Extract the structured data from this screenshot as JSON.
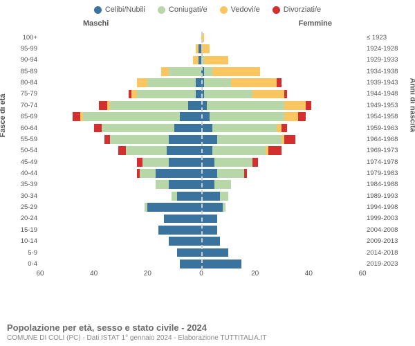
{
  "type": "population-pyramid",
  "legend": [
    {
      "label": "Celibi/Nubili",
      "color": "#3b739f"
    },
    {
      "label": "Coniugati/e",
      "color": "#b7d7a8"
    },
    {
      "label": "Vedovi/e",
      "color": "#f9c662"
    },
    {
      "label": "Divorziati/e",
      "color": "#d32f2f"
    }
  ],
  "gender_labels": {
    "m": "Maschi",
    "f": "Femmine"
  },
  "y_left_title": "Fasce di età",
  "y_right_title": "Anni di nascita",
  "x_axis": {
    "min": -60,
    "max": 60,
    "ticks": [
      60,
      40,
      20,
      0,
      20,
      40,
      60
    ]
  },
  "title": "Popolazione per età, sesso e stato civile - 2024",
  "subtitle": "COMUNE DI COLI (PC) - Dati ISTAT 1° gennaio 2024 - Elaborazione TUTTITALIA.IT",
  "colors": {
    "bg": "#ffffff",
    "grid": "#f0f0f0",
    "center": "#d0d0d0",
    "text": "#555555"
  },
  "scale_max": 60,
  "rows": [
    {
      "age": "100+",
      "birth": "≤ 1923",
      "m": [
        0,
        0,
        0,
        0
      ],
      "f": [
        0,
        0,
        1,
        0
      ]
    },
    {
      "age": "95-99",
      "birth": "1924-1928",
      "m": [
        1,
        0,
        1,
        0
      ],
      "f": [
        0,
        0,
        3,
        0
      ]
    },
    {
      "age": "90-94",
      "birth": "1929-1933",
      "m": [
        1,
        0,
        2,
        0
      ],
      "f": [
        0,
        1,
        9,
        0
      ]
    },
    {
      "age": "85-89",
      "birth": "1934-1938",
      "m": [
        0,
        12,
        3,
        0
      ],
      "f": [
        1,
        3,
        18,
        0
      ]
    },
    {
      "age": "80-84",
      "birth": "1939-1943",
      "m": [
        2,
        18,
        4,
        0
      ],
      "f": [
        1,
        10,
        17,
        2
      ]
    },
    {
      "age": "75-79",
      "birth": "1944-1948",
      "m": [
        2,
        22,
        2,
        1
      ],
      "f": [
        1,
        18,
        12,
        1
      ]
    },
    {
      "age": "70-74",
      "birth": "1949-1953",
      "m": [
        5,
        29,
        1,
        3
      ],
      "f": [
        2,
        29,
        8,
        2
      ]
    },
    {
      "age": "65-69",
      "birth": "1954-1958",
      "m": [
        8,
        36,
        1,
        3
      ],
      "f": [
        3,
        28,
        5,
        3
      ]
    },
    {
      "age": "60-64",
      "birth": "1959-1963",
      "m": [
        10,
        27,
        0,
        3
      ],
      "f": [
        4,
        24,
        2,
        2
      ]
    },
    {
      "age": "55-59",
      "birth": "1964-1968",
      "m": [
        12,
        22,
        0,
        2
      ],
      "f": [
        6,
        24,
        1,
        4
      ]
    },
    {
      "age": "50-54",
      "birth": "1969-1973",
      "m": [
        13,
        15,
        0,
        3
      ],
      "f": [
        4,
        20,
        1,
        5
      ]
    },
    {
      "age": "45-49",
      "birth": "1974-1978",
      "m": [
        12,
        10,
        0,
        2
      ],
      "f": [
        5,
        14,
        0,
        2
      ]
    },
    {
      "age": "40-44",
      "birth": "1979-1983",
      "m": [
        17,
        6,
        0,
        1
      ],
      "f": [
        6,
        10,
        0,
        1
      ]
    },
    {
      "age": "35-39",
      "birth": "1984-1988",
      "m": [
        12,
        5,
        0,
        0
      ],
      "f": [
        5,
        6,
        0,
        0
      ]
    },
    {
      "age": "30-34",
      "birth": "1989-1993",
      "m": [
        9,
        2,
        0,
        0
      ],
      "f": [
        7,
        3,
        0,
        0
      ]
    },
    {
      "age": "25-29",
      "birth": "1994-1998",
      "m": [
        20,
        1,
        0,
        0
      ],
      "f": [
        8,
        1,
        0,
        0
      ]
    },
    {
      "age": "20-24",
      "birth": "1999-2003",
      "m": [
        14,
        0,
        0,
        0
      ],
      "f": [
        6,
        0,
        0,
        0
      ]
    },
    {
      "age": "15-19",
      "birth": "2004-2008",
      "m": [
        16,
        0,
        0,
        0
      ],
      "f": [
        6,
        0,
        0,
        0
      ]
    },
    {
      "age": "10-14",
      "birth": "2009-2013",
      "m": [
        12,
        0,
        0,
        0
      ],
      "f": [
        7,
        0,
        0,
        0
      ]
    },
    {
      "age": "5-9",
      "birth": "2014-2018",
      "m": [
        9,
        0,
        0,
        0
      ],
      "f": [
        10,
        0,
        0,
        0
      ]
    },
    {
      "age": "0-4",
      "birth": "2019-2023",
      "m": [
        8,
        0,
        0,
        0
      ],
      "f": [
        15,
        0,
        0,
        0
      ]
    }
  ]
}
